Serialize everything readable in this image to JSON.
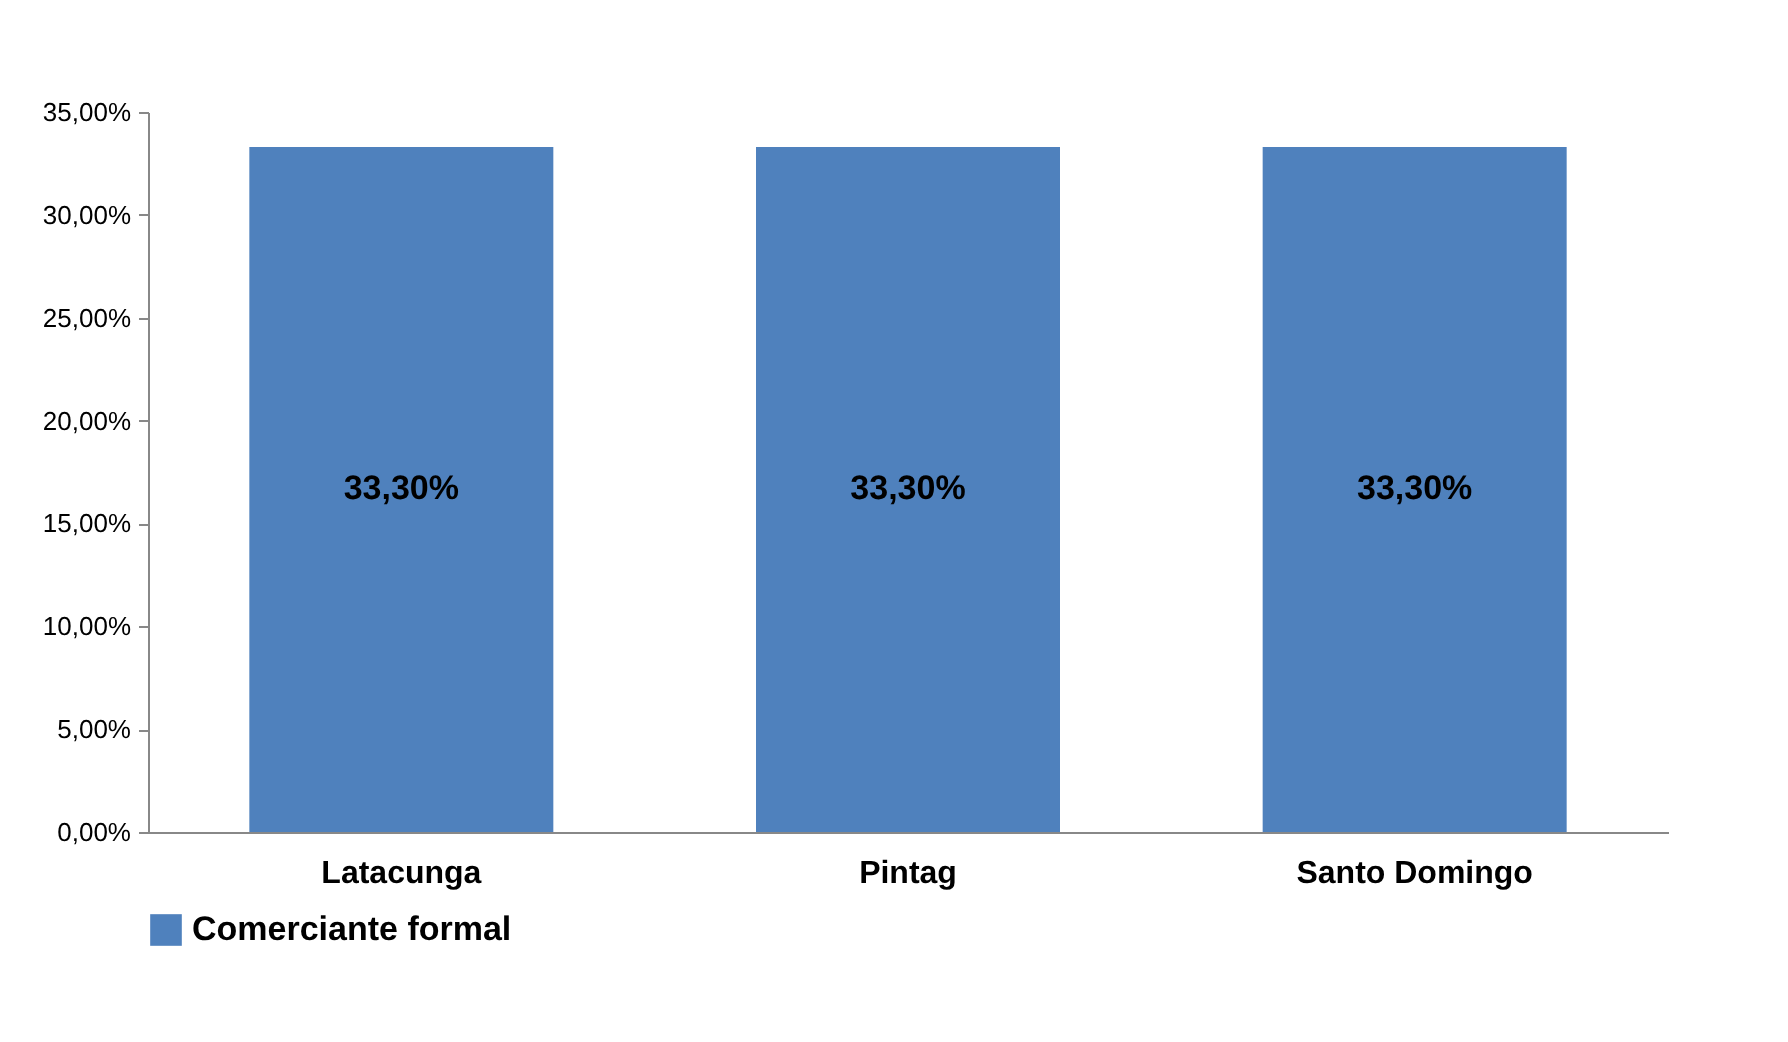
{
  "chart_data": {
    "type": "bar",
    "categories": [
      "Latacunga",
      "Pintag",
      "Santo Domingo"
    ],
    "series": [
      {
        "name": "Comerciante formal",
        "color": "#4f81bd",
        "values": [
          33.3,
          33.3,
          33.3
        ],
        "value_labels": [
          "33,30%",
          "33,30%",
          "33,30%"
        ]
      }
    ],
    "ylim": [
      0,
      35
    ],
    "yticks": [
      {
        "value": 0,
        "label": "0,00%"
      },
      {
        "value": 5,
        "label": "5,00%"
      },
      {
        "value": 10,
        "label": "10,00%"
      },
      {
        "value": 15,
        "label": "15,00%"
      },
      {
        "value": 20,
        "label": "20,00%"
      },
      {
        "value": 25,
        "label": "25,00%"
      },
      {
        "value": 30,
        "label": "30,00%"
      },
      {
        "value": 35,
        "label": "35,00%"
      }
    ],
    "legend": "bottom"
  }
}
